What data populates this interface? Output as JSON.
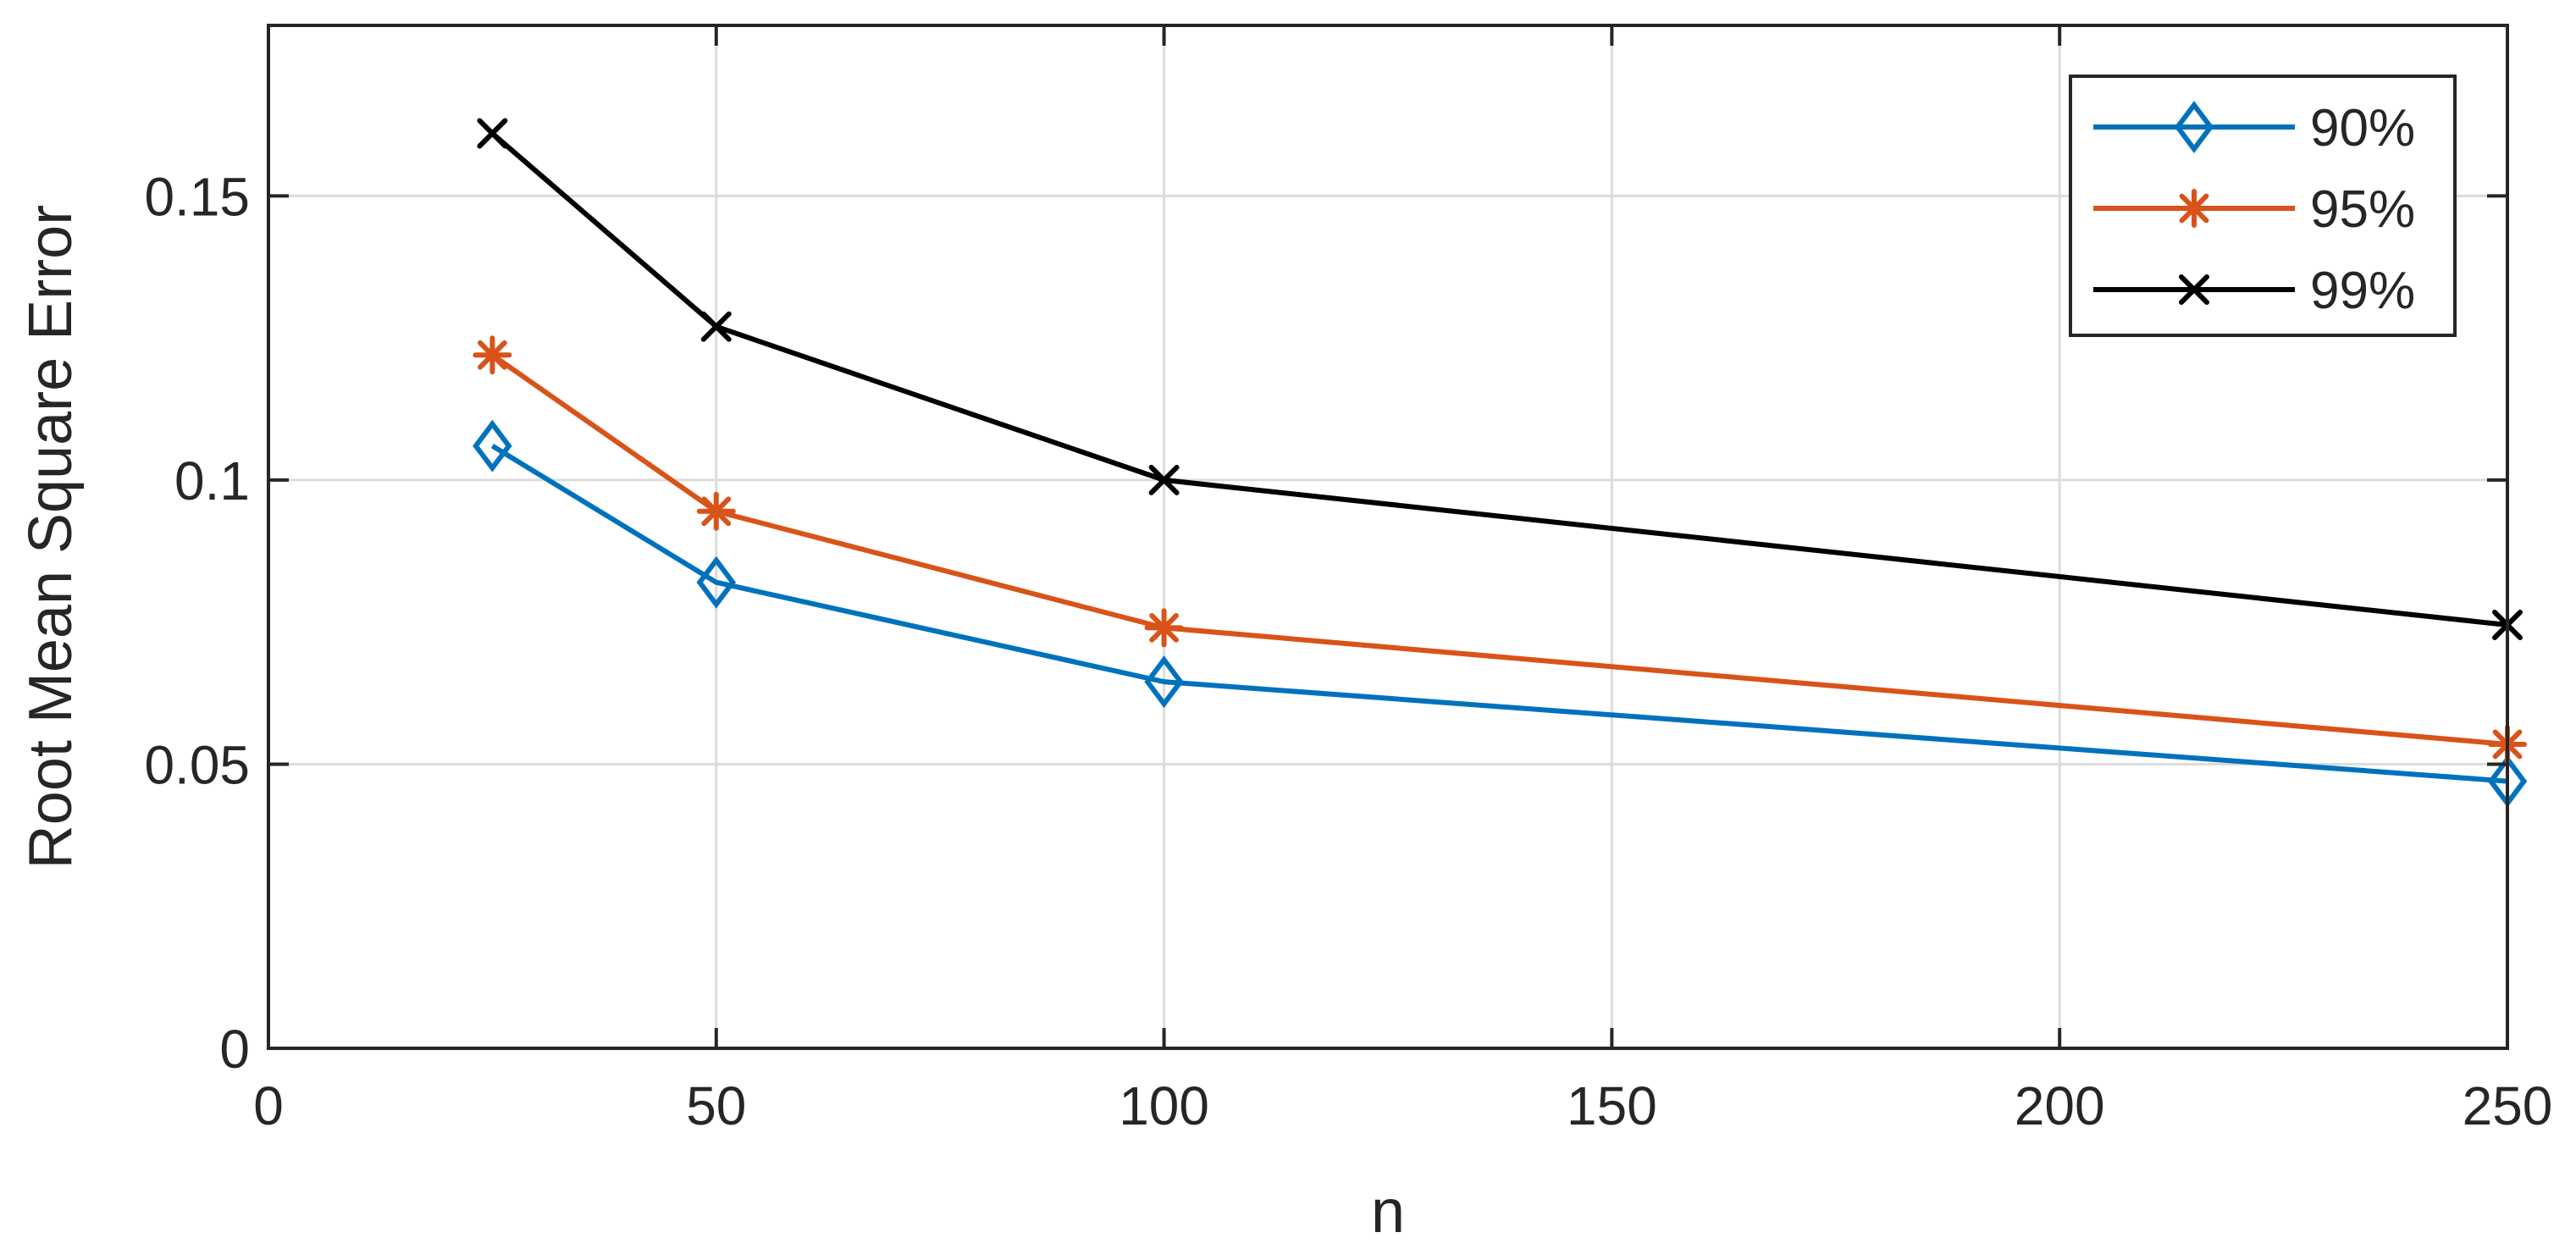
{
  "chart_data": {
    "type": "line",
    "title": "",
    "xlabel": "n",
    "ylabel": "Root Mean Square Error",
    "xlim": [
      0,
      250
    ],
    "ylim": [
      0,
      0.18
    ],
    "grid": true,
    "legend_position": "top-right",
    "x": [
      25,
      50,
      100,
      250
    ],
    "xticks": [
      0,
      50,
      100,
      150,
      200,
      250
    ],
    "xtick_labels": [
      "0",
      "50",
      "100",
      "150",
      "200",
      "250"
    ],
    "yticks": [
      0,
      0.05,
      0.1,
      0.15
    ],
    "ytick_labels": [
      "0",
      "0.05",
      "0.1",
      "0.15"
    ],
    "series": [
      {
        "name": "90%",
        "marker": "diamond",
        "color": "#0072BD",
        "values": [
          0.106,
          0.082,
          0.0645,
          0.047
        ]
      },
      {
        "name": "95%",
        "marker": "asterisk",
        "color": "#D95319",
        "values": [
          0.122,
          0.0945,
          0.074,
          0.0535
        ]
      },
      {
        "name": "99%",
        "marker": "cross",
        "color": "#000000",
        "values": [
          0.161,
          0.127,
          0.1,
          0.0745
        ]
      }
    ]
  }
}
